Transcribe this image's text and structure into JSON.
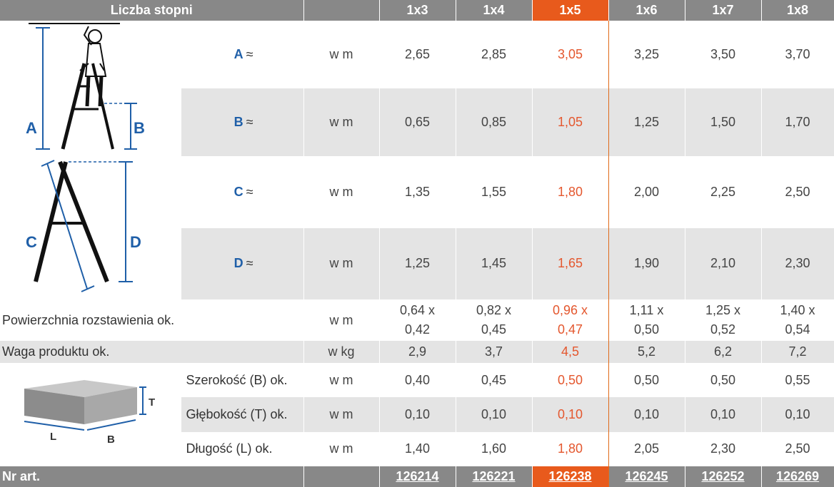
{
  "header": {
    "title": "Liczba stopni",
    "columns": [
      "1x3",
      "1x4",
      "1x5",
      "1x6",
      "1x7",
      "1x8"
    ]
  },
  "diagram_labels": {
    "a": "A",
    "b": "B",
    "c": "C",
    "d": "D",
    "t": "T",
    "l": "L",
    "b2": "B"
  },
  "rows": {
    "a": {
      "label": "A",
      "approx": "≈",
      "unit": "w m",
      "values": [
        "2,65",
        "2,85",
        "3,05",
        "3,25",
        "3,50",
        "3,70"
      ]
    },
    "b": {
      "label": "B",
      "approx": "≈",
      "unit": "w m",
      "values": [
        "0,65",
        "0,85",
        "1,05",
        "1,25",
        "1,50",
        "1,70"
      ]
    },
    "c": {
      "label": "C",
      "approx": "≈",
      "unit": "w m",
      "values": [
        "1,35",
        "1,55",
        "1,80",
        "2,00",
        "2,25",
        "2,50"
      ]
    },
    "d": {
      "label": "D",
      "approx": "≈",
      "unit": "w m",
      "values": [
        "1,25",
        "1,45",
        "1,65",
        "1,90",
        "2,10",
        "2,30"
      ]
    },
    "area": {
      "label": "Powierzchnia rozstawienia ok.",
      "unit": "w m",
      "line1": [
        "0,64 x",
        "0,82 x",
        "0,96 x",
        "1,11 x",
        "1,25 x",
        "1,40 x"
      ],
      "line2": [
        "0,42",
        "0,45",
        "0,47",
        "0,50",
        "0,52",
        "0,54"
      ]
    },
    "weight": {
      "label": "Waga produktu ok.",
      "unit": "w kg",
      "values": [
        "2,9",
        "3,7",
        "4,5",
        "5,2",
        "6,2",
        "7,2"
      ]
    },
    "width": {
      "label": "Szerokość (B) ok.",
      "unit": "w m",
      "values": [
        "0,40",
        "0,45",
        "0,50",
        "0,50",
        "0,50",
        "0,55"
      ]
    },
    "depth": {
      "label": "Głębokość (T) ok.",
      "unit": "w m",
      "values": [
        "0,10",
        "0,10",
        "0,10",
        "0,10",
        "0,10",
        "0,10"
      ]
    },
    "length": {
      "label": "Długość (L) ok.",
      "unit": "w m",
      "values": [
        "1,40",
        "1,60",
        "1,80",
        "2,05",
        "2,30",
        "2,50"
      ]
    }
  },
  "footer": {
    "label": "Nr art.",
    "articles": [
      "126214",
      "126221",
      "126238",
      "126245",
      "126252",
      "126269"
    ]
  },
  "colors": {
    "highlight": "#e85a1c",
    "highlight_text": "#e4572e",
    "label_blue": "#1f5fa8",
    "header_grey": "#888888",
    "row_grey": "#e4e4e4"
  }
}
